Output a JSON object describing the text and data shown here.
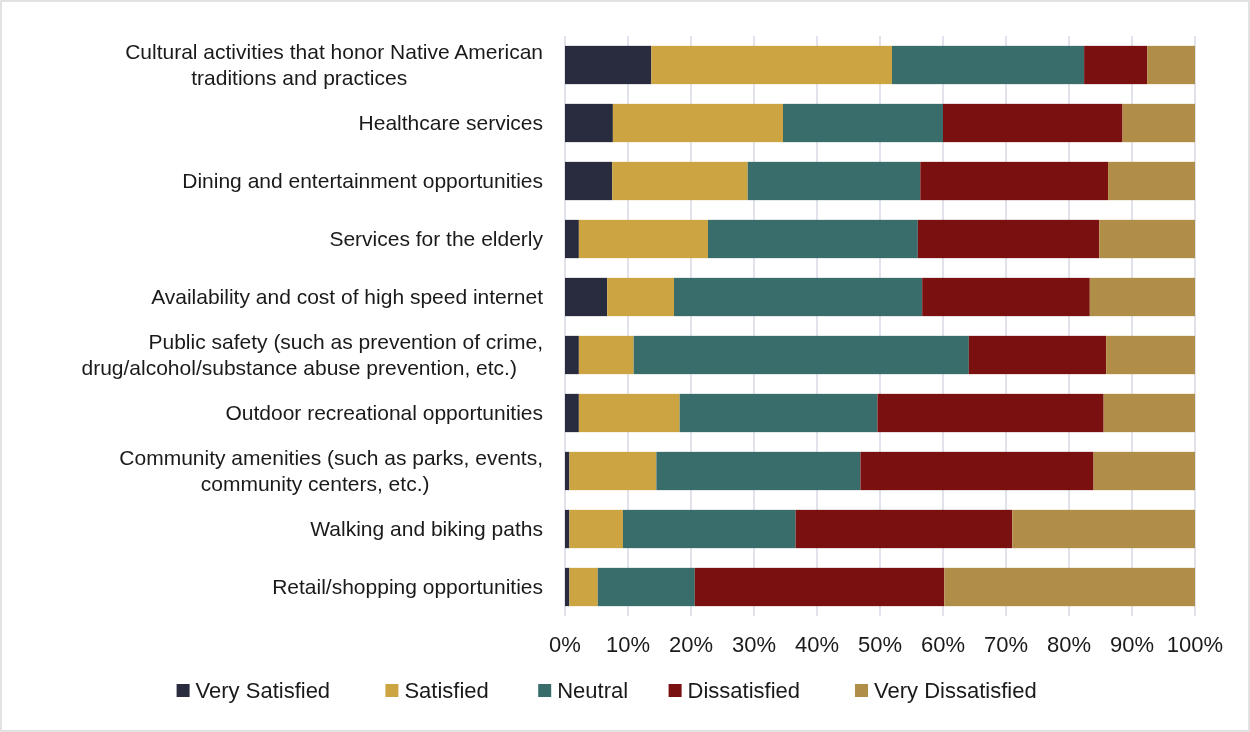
{
  "chart_data": {
    "type": "bar",
    "orientation": "horizontal",
    "stacked": true,
    "categories": [
      "Cultural activities that honor Native American\ntraditions and practices",
      "Healthcare services",
      "Dining and entertainment opportunities",
      "Services for the elderly",
      "Availability and cost of high speed internet",
      "Public safety (such as prevention of crime,\ndrug/alcohol/substance abuse prevention, etc.)",
      "Outdoor recreational opportunities",
      "Community amenities (such as parks, events,\ncommunity centers, etc.)",
      "Walking and biking paths",
      "Retail/shopping opportunities"
    ],
    "series": [
      {
        "name": "Very Satisfied",
        "color": "#282c3e",
        "values": [
          13.7,
          7.6,
          7.5,
          2.2,
          6.7,
          2.2,
          2.2,
          0.7,
          0.7,
          0.7
        ]
      },
      {
        "name": "Satisfied",
        "color": "#cda442",
        "values": [
          38.2,
          27.0,
          21.5,
          20.5,
          10.6,
          8.7,
          16.0,
          13.8,
          8.5,
          4.5
        ]
      },
      {
        "name": "Neutral",
        "color": "#386d6c",
        "values": [
          30.5,
          25.4,
          27.4,
          33.3,
          39.4,
          53.2,
          31.4,
          32.4,
          27.4,
          15.4
        ]
      },
      {
        "name": "Dissatisfied",
        "color": "#7b1010",
        "values": [
          10.0,
          28.5,
          29.8,
          28.8,
          26.6,
          21.8,
          35.9,
          37.0,
          34.4,
          39.6
        ]
      },
      {
        "name": "Very Dissatisfied",
        "color": "#b08e48",
        "values": [
          7.6,
          11.5,
          13.8,
          15.2,
          16.7,
          14.1,
          14.5,
          16.1,
          29.0,
          39.8
        ]
      }
    ],
    "xlim": [
      0,
      100
    ],
    "xticks": [
      {
        "value": 0,
        "label": "0%"
      },
      {
        "value": 10,
        "label": "10%"
      },
      {
        "value": 20,
        "label": "20%"
      },
      {
        "value": 30,
        "label": "30%"
      },
      {
        "value": 40,
        "label": "40%"
      },
      {
        "value": 50,
        "label": "50%"
      },
      {
        "value": 60,
        "label": "60%"
      },
      {
        "value": 70,
        "label": "70%"
      },
      {
        "value": 80,
        "label": "80%"
      },
      {
        "value": 90,
        "label": "90%"
      },
      {
        "value": 100,
        "label": "100%"
      }
    ],
    "grid": "x",
    "legend": "bottom"
  }
}
